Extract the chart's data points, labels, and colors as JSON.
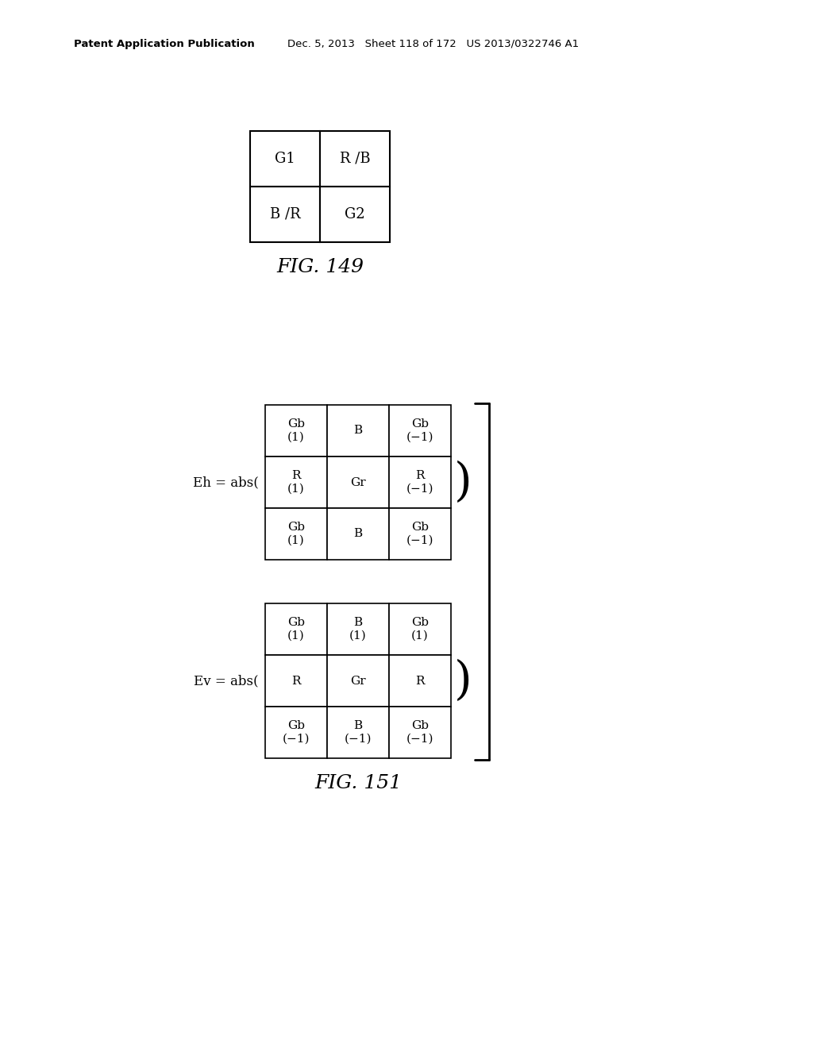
{
  "bg_color": "#ffffff",
  "header_left": "Patent Application Publication",
  "header_right": "Dec. 5, 2013   Sheet 118 of 172   US 2013/0322746 A1",
  "fig149_label": "FIG. 149",
  "fig151_label": "FIG. 151",
  "fig149_grid": [
    [
      "G1",
      "R /B"
    ],
    [
      "B /R",
      "G2"
    ]
  ],
  "eh_label": "Eh = abs(",
  "ev_label": "Ev = abs(",
  "eh_grid": [
    [
      "Gb\n(1)",
      "B",
      "Gb\n(−1)"
    ],
    [
      "R\n(1)",
      "Gr",
      "R\n(−1)"
    ],
    [
      "Gb\n(1)",
      "B",
      "Gb\n(−1)"
    ]
  ],
  "ev_grid": [
    [
      "Gb\n(1)",
      "B\n(1)",
      "Gb\n(1)"
    ],
    [
      "R",
      "Gr",
      "R"
    ],
    [
      "Gb\n(−1)",
      "B\n(−1)",
      "Gb\n(−1)"
    ]
  ],
  "font_size_header": 9.5,
  "font_size_fig": 18,
  "font_size_cell_149": 13,
  "font_size_cell_3x3": 11,
  "font_size_label": 12
}
